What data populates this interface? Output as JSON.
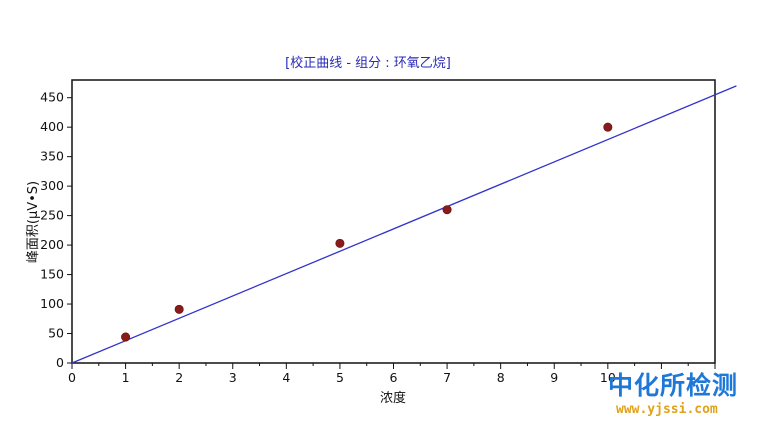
{
  "chart_data": {
    "type": "scatter",
    "title": "[校正曲线 - 组分 : 环氧乙烷]",
    "xlabel": "浓度",
    "ylabel": "峰面积(μV•S)",
    "xlim": [
      0,
      12
    ],
    "ylim": [
      0,
      480
    ],
    "x_ticks": [
      0,
      1,
      2,
      3,
      4,
      5,
      6,
      7,
      8,
      9,
      10
    ],
    "y_ticks": [
      0,
      50,
      100,
      150,
      200,
      250,
      300,
      350,
      400,
      450
    ],
    "grid": false,
    "legend": "none",
    "series": [
      {
        "points": [
          {
            "x": 1,
            "y": 44
          },
          {
            "x": 2,
            "y": 91
          },
          {
            "x": 5,
            "y": 203
          },
          {
            "x": 7,
            "y": 260
          },
          {
            "x": 10,
            "y": 400
          }
        ],
        "color": "#8b1a1a"
      }
    ],
    "fit_line": {
      "x": [
        0,
        12.4
      ],
      "y": [
        0,
        470
      ],
      "color": "#3333cc"
    }
  },
  "watermark": {
    "text": "中化所检测",
    "url": "www.yjssi.com",
    "color_text": "#1e78d8",
    "color_url": "#e0a21a"
  }
}
